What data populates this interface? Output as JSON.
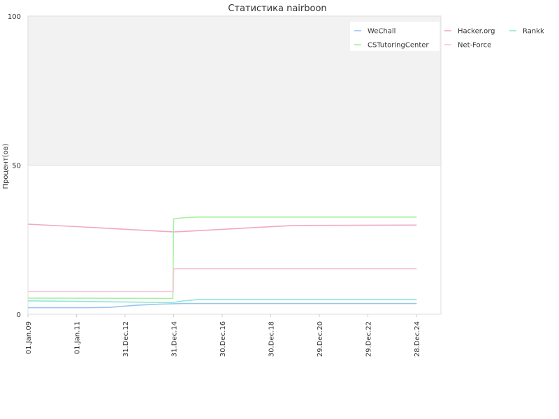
{
  "chart_data": {
    "type": "line",
    "title": "Статистика nairboon",
    "xlabel": "",
    "ylabel": "Процент(ов)",
    "ylim": [
      0,
      100
    ],
    "yticks": [
      "0",
      "50",
      "100"
    ],
    "xlim": [
      "2009-01-01",
      "2025-12-31"
    ],
    "xticks": [
      {
        "date": "2009-01-01",
        "label": "01.Jan.09"
      },
      {
        "date": "2011-01-01",
        "label": "01.Jan.11"
      },
      {
        "date": "2012-12-31",
        "label": "31.Dec.12"
      },
      {
        "date": "2014-12-31",
        "label": "31.Dec.14"
      },
      {
        "date": "2016-12-30",
        "label": "30.Dec.16"
      },
      {
        "date": "2018-12-30",
        "label": "30.Dec.18"
      },
      {
        "date": "2020-12-29",
        "label": "29.Dec.20"
      },
      {
        "date": "2022-12-29",
        "label": "29.Dec.22"
      },
      {
        "date": "2024-12-28",
        "label": "28.Dec.24"
      }
    ],
    "grid": false,
    "shaded_band": [
      50,
      100
    ],
    "legend_position": "top-right",
    "series": [
      {
        "name": "WeChall",
        "color": "#9ac4f0",
        "points": [
          [
            "2009-01-01",
            2.2
          ],
          [
            "2011-07-01",
            2.2
          ],
          [
            "2012-05-01",
            2.3
          ],
          [
            "2013-06-01",
            3.0
          ],
          [
            "2014-06-01",
            3.4
          ],
          [
            "2015-06-01",
            3.6
          ],
          [
            "2025-01-01",
            3.6
          ]
        ]
      },
      {
        "name": "Hacker.org",
        "color": "#f0a8c8",
        "points": [
          [
            "2009-01-01",
            30.2
          ],
          [
            "2011-01-01",
            29.4
          ],
          [
            "2013-01-01",
            28.5
          ],
          [
            "2014-12-31",
            27.6
          ],
          [
            "2016-06-01",
            28.2
          ],
          [
            "2018-06-01",
            29.1
          ],
          [
            "2020-01-01",
            29.8
          ],
          [
            "2025-01-01",
            29.9
          ]
        ]
      },
      {
        "name": "Rankk",
        "color": "#90e8d8",
        "points": [
          [
            "2009-01-01",
            4.5
          ],
          [
            "2011-01-01",
            4.3
          ],
          [
            "2014-12-15",
            3.9
          ],
          [
            "2015-06-01",
            4.5
          ],
          [
            "2016-01-01",
            4.9
          ],
          [
            "2025-01-01",
            4.9
          ]
        ]
      },
      {
        "name": "CSTutoringCenter",
        "color": "#a8f0a0",
        "points": [
          [
            "2009-01-01",
            5.4
          ],
          [
            "2014-12-20",
            5.3
          ],
          [
            "2014-12-31",
            32.0
          ],
          [
            "2015-06-01",
            32.4
          ],
          [
            "2016-01-01",
            32.6
          ],
          [
            "2025-01-01",
            32.6
          ]
        ]
      },
      {
        "name": "Net-Force",
        "color": "#f8c8d8",
        "points": [
          [
            "2009-01-01",
            7.6
          ],
          [
            "2014-12-25",
            7.6
          ],
          [
            "2015-01-01",
            15.3
          ],
          [
            "2025-01-01",
            15.3
          ]
        ]
      }
    ]
  }
}
